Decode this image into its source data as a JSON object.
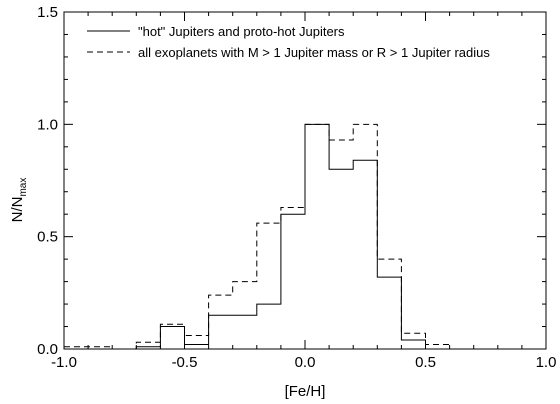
{
  "chart_data": {
    "type": "line",
    "xlabel": "[Fe/H]",
    "ylabel_main": "N/N",
    "ylabel_sub": "max",
    "xlim": [
      -1.0,
      1.0
    ],
    "ylim": [
      0.0,
      1.5
    ],
    "xticks": [
      -1.0,
      -0.5,
      0.0,
      0.5,
      1.0
    ],
    "xtick_labels": [
      "-1.0",
      "-0.5",
      "0.0",
      "0.5",
      "1.0"
    ],
    "yticks": [
      0.0,
      0.5,
      1.0,
      1.5
    ],
    "ytick_labels": [
      "0.0",
      "0.5",
      "1.0",
      "1.5"
    ],
    "grid": false,
    "legend_position": "top-left",
    "series": [
      {
        "name": "\"hot\" Jupiters and proto-hot Jupiters",
        "style": "solid",
        "color": "#000000",
        "bin_edges": [
          -1.0,
          -0.9,
          -0.8,
          -0.7,
          -0.6,
          -0.5,
          -0.4,
          -0.3,
          -0.2,
          -0.1,
          0.0,
          0.1,
          0.2,
          0.3,
          0.4,
          0.5,
          0.6,
          0.7,
          0.8,
          0.9,
          1.0
        ],
        "values": [
          0.0,
          0.0,
          0.0,
          0.01,
          0.1,
          0.02,
          0.15,
          0.15,
          0.2,
          0.6,
          1.0,
          0.8,
          0.84,
          0.32,
          0.04,
          0.0,
          0.0,
          0.0,
          0.0,
          0.0
        ]
      },
      {
        "name": "all exoplanets with M > 1 Jupiter mass or R > 1 Jupiter radius",
        "style": "dashed",
        "color": "#000000",
        "bin_edges": [
          -1.0,
          -0.9,
          -0.8,
          -0.7,
          -0.6,
          -0.5,
          -0.4,
          -0.3,
          -0.2,
          -0.1,
          0.0,
          0.1,
          0.2,
          0.3,
          0.4,
          0.5,
          0.6,
          0.7,
          0.8,
          0.9,
          1.0
        ],
        "values": [
          0.01,
          0.01,
          0.0,
          0.03,
          0.11,
          0.06,
          0.24,
          0.3,
          0.56,
          0.63,
          1.0,
          0.93,
          1.0,
          0.4,
          0.07,
          0.02,
          0.0,
          0.0,
          0.0,
          0.0
        ]
      }
    ]
  }
}
